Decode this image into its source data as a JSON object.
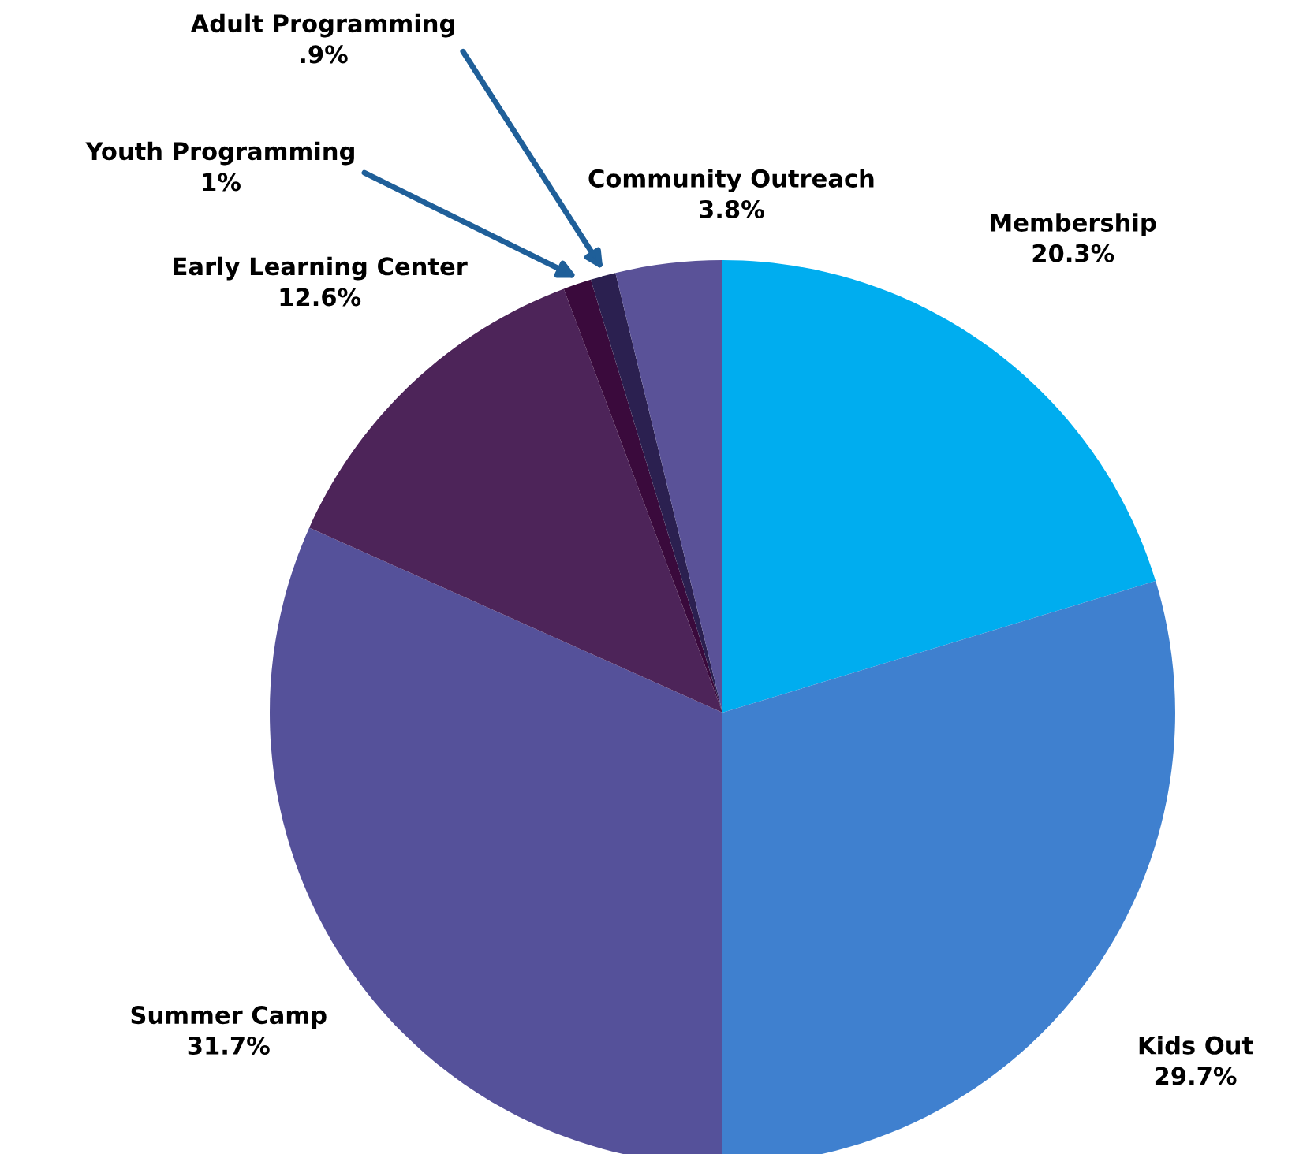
{
  "chart_data": {
    "type": "pie",
    "categories": [
      "Membership",
      "Kids Out",
      "Summer Camp",
      "Early Learning Center",
      "Youth Programming",
      "Adult Programming",
      "Community Outreach"
    ],
    "values": [
      20.3,
      29.7,
      31.7,
      12.6,
      1,
      0.9,
      3.8
    ],
    "value_labels": [
      "20.3%",
      "29.7%",
      "31.7%",
      "12.6%",
      "1%",
      ".9%",
      "3.8%"
    ],
    "colors": [
      "#00adef",
      "#3f80cf",
      "#55519a",
      "#4d2459",
      "#3a0a3c",
      "#2b2050",
      "#5a5298"
    ]
  }
}
